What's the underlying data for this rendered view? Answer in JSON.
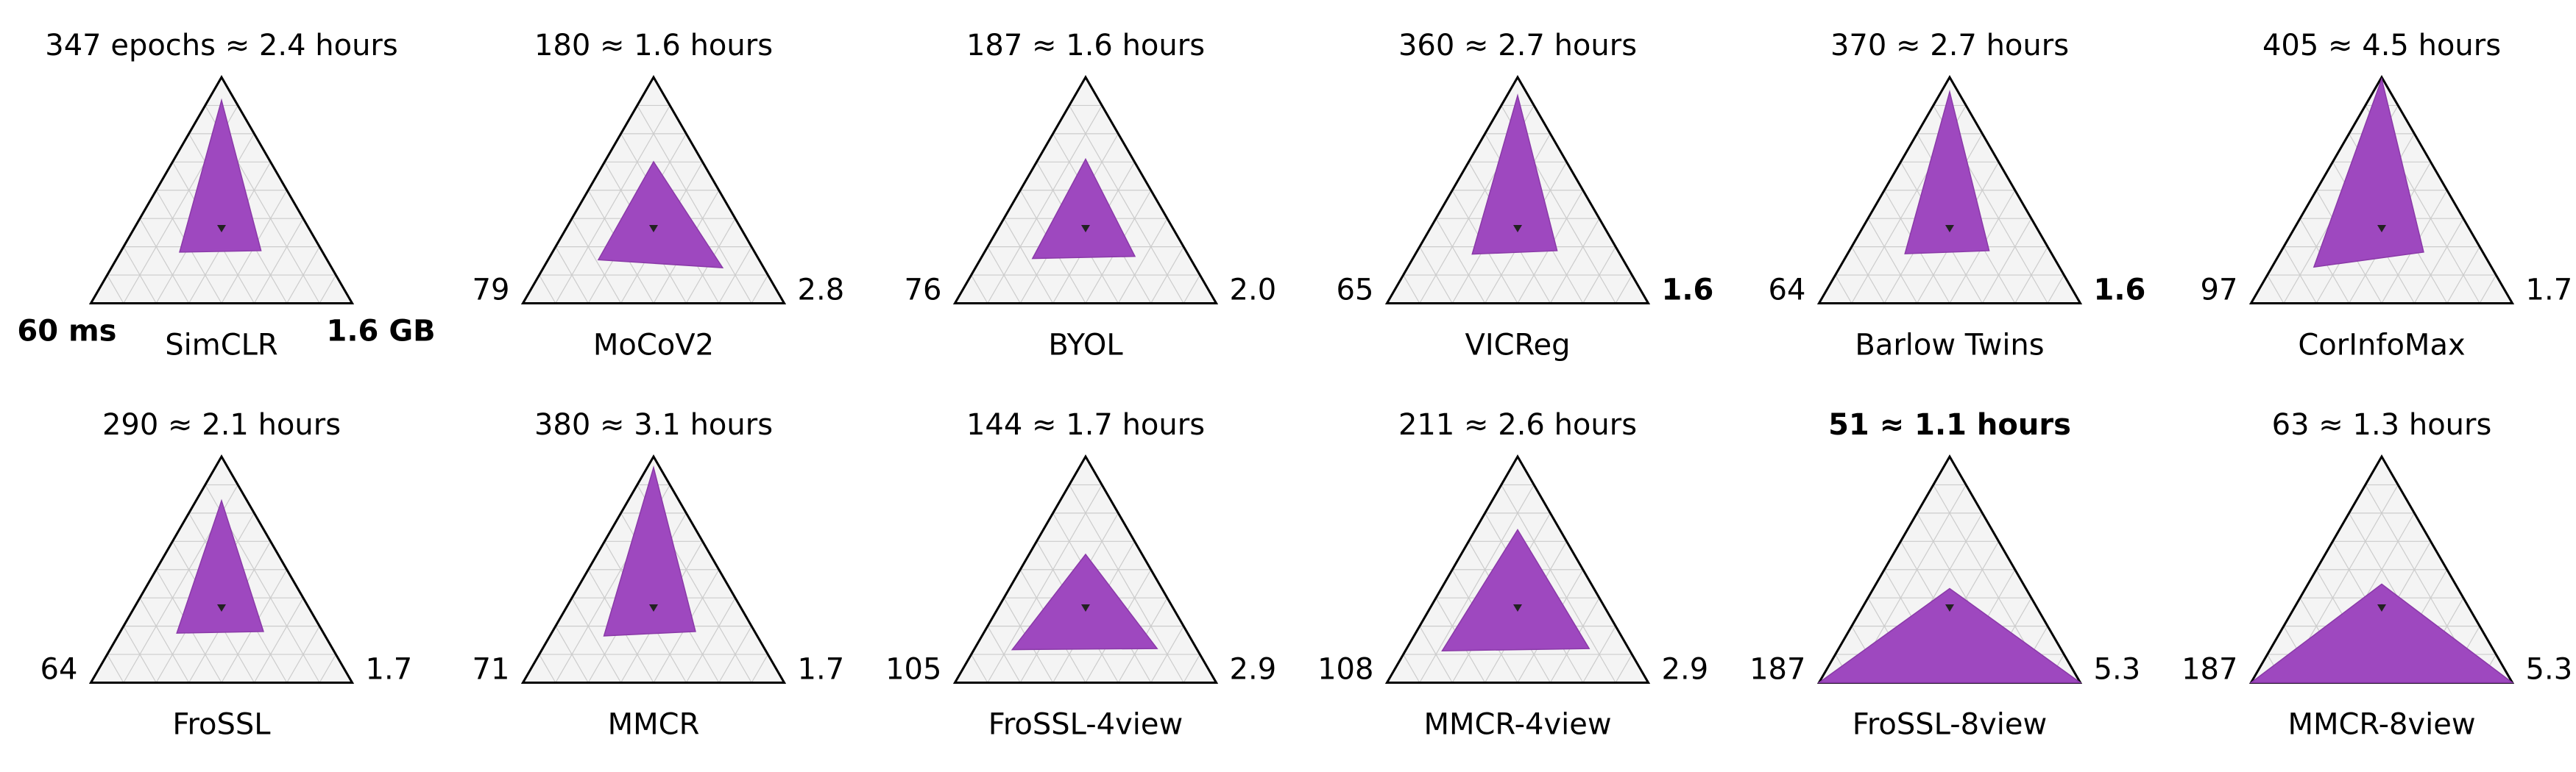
{
  "figure": {
    "description_fields": {
      "top_axis": "epochs / hours",
      "left_axis": "ms",
      "right_axis": "GB"
    }
  },
  "colors": {
    "fill": "#9e48bf",
    "fill_edge": "#8a3aa8",
    "grid": "#cccccc",
    "panel_bg": "#f4f4f4",
    "outline": "#000000"
  },
  "chart_data": [
    {
      "type": "radar",
      "name": "SimCLR",
      "title_parts": [
        "347 epochs",
        "≈",
        "2.4 hours"
      ],
      "title_bold": false,
      "left_label": "60 ms",
      "left_bold": true,
      "right_label": "1.6 GB",
      "right_bold": true,
      "top_value": 347,
      "hours": 2.4,
      "left_value": 60,
      "right_value": 1.6
    },
    {
      "type": "radar",
      "name": "MoCoV2",
      "title_parts": [
        "180",
        "≈",
        "1.6 hours"
      ],
      "title_bold": false,
      "left_label": "79",
      "left_bold": false,
      "right_label": "2.8",
      "right_bold": false,
      "top_value": 180,
      "hours": 1.6,
      "left_value": 79,
      "right_value": 2.8
    },
    {
      "type": "radar",
      "name": "BYOL",
      "title_parts": [
        "187",
        "≈",
        "1.6 hours"
      ],
      "title_bold": false,
      "left_label": "76",
      "left_bold": false,
      "right_label": "2.0",
      "right_bold": false,
      "top_value": 187,
      "hours": 1.6,
      "left_value": 76,
      "right_value": 2.0
    },
    {
      "type": "radar",
      "name": "VICReg",
      "title_parts": [
        "360",
        "≈",
        "2.7 hours"
      ],
      "title_bold": false,
      "left_label": "65",
      "left_bold": false,
      "right_label": "1.6",
      "right_bold": true,
      "top_value": 360,
      "hours": 2.7,
      "left_value": 65,
      "right_value": 1.6
    },
    {
      "type": "radar",
      "name": "Barlow Twins",
      "title_parts": [
        "370",
        "≈",
        "2.7 hours"
      ],
      "title_bold": false,
      "left_label": "64",
      "left_bold": false,
      "right_label": "1.6",
      "right_bold": true,
      "top_value": 370,
      "hours": 2.7,
      "left_value": 64,
      "right_value": 1.6
    },
    {
      "type": "radar",
      "name": "CorInfoMax",
      "title_parts": [
        "405",
        "≈",
        "4.5 hours"
      ],
      "title_bold": false,
      "left_label": "97",
      "left_bold": false,
      "right_label": "1.7",
      "right_bold": false,
      "top_value": 405,
      "hours": 4.5,
      "left_value": 97,
      "right_value": 1.7
    },
    {
      "type": "radar",
      "name": "FroSSL",
      "title_parts": [
        "290",
        "≈",
        "2.1 hours"
      ],
      "title_bold": false,
      "left_label": "64",
      "left_bold": false,
      "right_label": "1.7",
      "right_bold": false,
      "top_value": 290,
      "hours": 2.1,
      "left_value": 64,
      "right_value": 1.7
    },
    {
      "type": "radar",
      "name": "MMCR",
      "title_parts": [
        "380",
        "≈",
        "3.1 hours"
      ],
      "title_bold": false,
      "left_label": "71",
      "left_bold": false,
      "right_label": "1.7",
      "right_bold": false,
      "top_value": 380,
      "hours": 3.1,
      "left_value": 71,
      "right_value": 1.7
    },
    {
      "type": "radar",
      "name": "FroSSL-4view",
      "title_parts": [
        "144",
        "≈",
        "1.7 hours"
      ],
      "title_bold": false,
      "left_label": "105",
      "left_bold": false,
      "right_label": "2.9",
      "right_bold": false,
      "top_value": 144,
      "hours": 1.7,
      "left_value": 105,
      "right_value": 2.9
    },
    {
      "type": "radar",
      "name": "MMCR-4view",
      "title_parts": [
        "211",
        "≈",
        "2.6 hours"
      ],
      "title_bold": false,
      "left_label": "108",
      "left_bold": false,
      "right_label": "2.9",
      "right_bold": false,
      "top_value": 211,
      "hours": 2.6,
      "left_value": 108,
      "right_value": 2.9
    },
    {
      "type": "radar",
      "name": "FroSSL-8view",
      "title_parts": [
        "51",
        "≈",
        "1.1 hours"
      ],
      "title_bold": true,
      "left_label": "187",
      "left_bold": false,
      "right_label": "5.3",
      "right_bold": false,
      "top_value": 51,
      "hours": 1.1,
      "left_value": 187,
      "right_value": 5.3
    },
    {
      "type": "radar",
      "name": "MMCR-8view",
      "title_parts": [
        "63",
        "≈",
        "1.3 hours"
      ],
      "title_bold": false,
      "left_label": "187",
      "left_bold": false,
      "right_label": "5.3",
      "right_bold": false,
      "top_value": 63,
      "hours": 1.3,
      "left_value": 187,
      "right_value": 5.3
    }
  ],
  "scales": {
    "top_max": 410,
    "left_max": 187,
    "right_max": 5.3
  }
}
